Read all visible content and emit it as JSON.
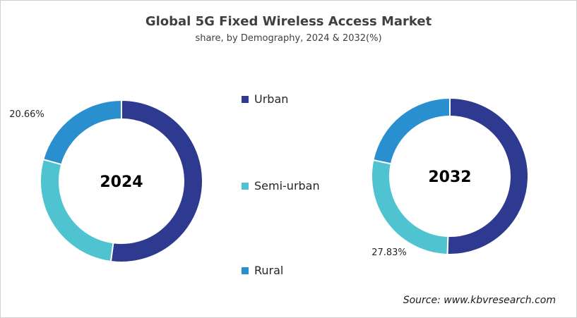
{
  "chart_data": [
    {
      "type": "pie",
      "variant": "donut",
      "center_label": "2024",
      "categories": [
        "Urban",
        "Semi-urban",
        "Rural"
      ],
      "values": [
        52.1,
        27.24,
        20.66
      ],
      "data_labels": {
        "Rural": "20.66%"
      }
    },
    {
      "type": "pie",
      "variant": "donut",
      "center_label": "2032",
      "categories": [
        "Urban",
        "Semi-urban",
        "Rural"
      ],
      "values": [
        50.5,
        27.83,
        21.67
      ],
      "data_labels": {
        "Semi-urban": "27.83%"
      }
    }
  ],
  "title": "Global 5G Fixed Wireless Access Market",
  "subtitle": "share, by Demography, 2024 & 2032(%)",
  "legend": [
    {
      "label": "Urban",
      "color": "#2e3a8f"
    },
    {
      "label": "Semi-urban",
      "color": "#4fc3cf"
    },
    {
      "label": "Rural",
      "color": "#2a8fcf"
    }
  ],
  "legend_placement": "center",
  "source": "Source: www.kbvresearch.com"
}
